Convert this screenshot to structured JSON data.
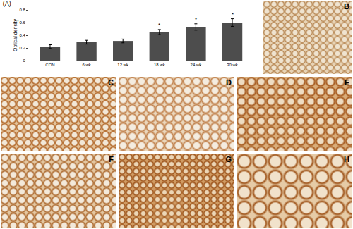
{
  "chart_data": {
    "type": "bar",
    "title": "(A)",
    "y_label": "Optical density",
    "categories": [
      "CON",
      "6 wk",
      "12 wk",
      "18 wk",
      "24 wk",
      "30 wk"
    ],
    "values": [
      0.22,
      0.29,
      0.31,
      0.45,
      0.53,
      0.6
    ],
    "errors": [
      0.03,
      0.03,
      0.03,
      0.04,
      0.05,
      0.06
    ],
    "annotations": [
      null,
      null,
      null,
      "*",
      "*",
      "*"
    ],
    "color": "#4d4d4d",
    "ylim": [
      0,
      0.8
    ],
    "yticks": [
      0,
      0.2,
      0.4,
      0.6,
      0.8
    ],
    "grid": false
  },
  "panels": [
    {
      "label": "B"
    },
    {
      "label": "C"
    },
    {
      "label": "D"
    },
    {
      "label": "E"
    },
    {
      "label": "F"
    },
    {
      "label": "G"
    },
    {
      "label": "H"
    }
  ]
}
